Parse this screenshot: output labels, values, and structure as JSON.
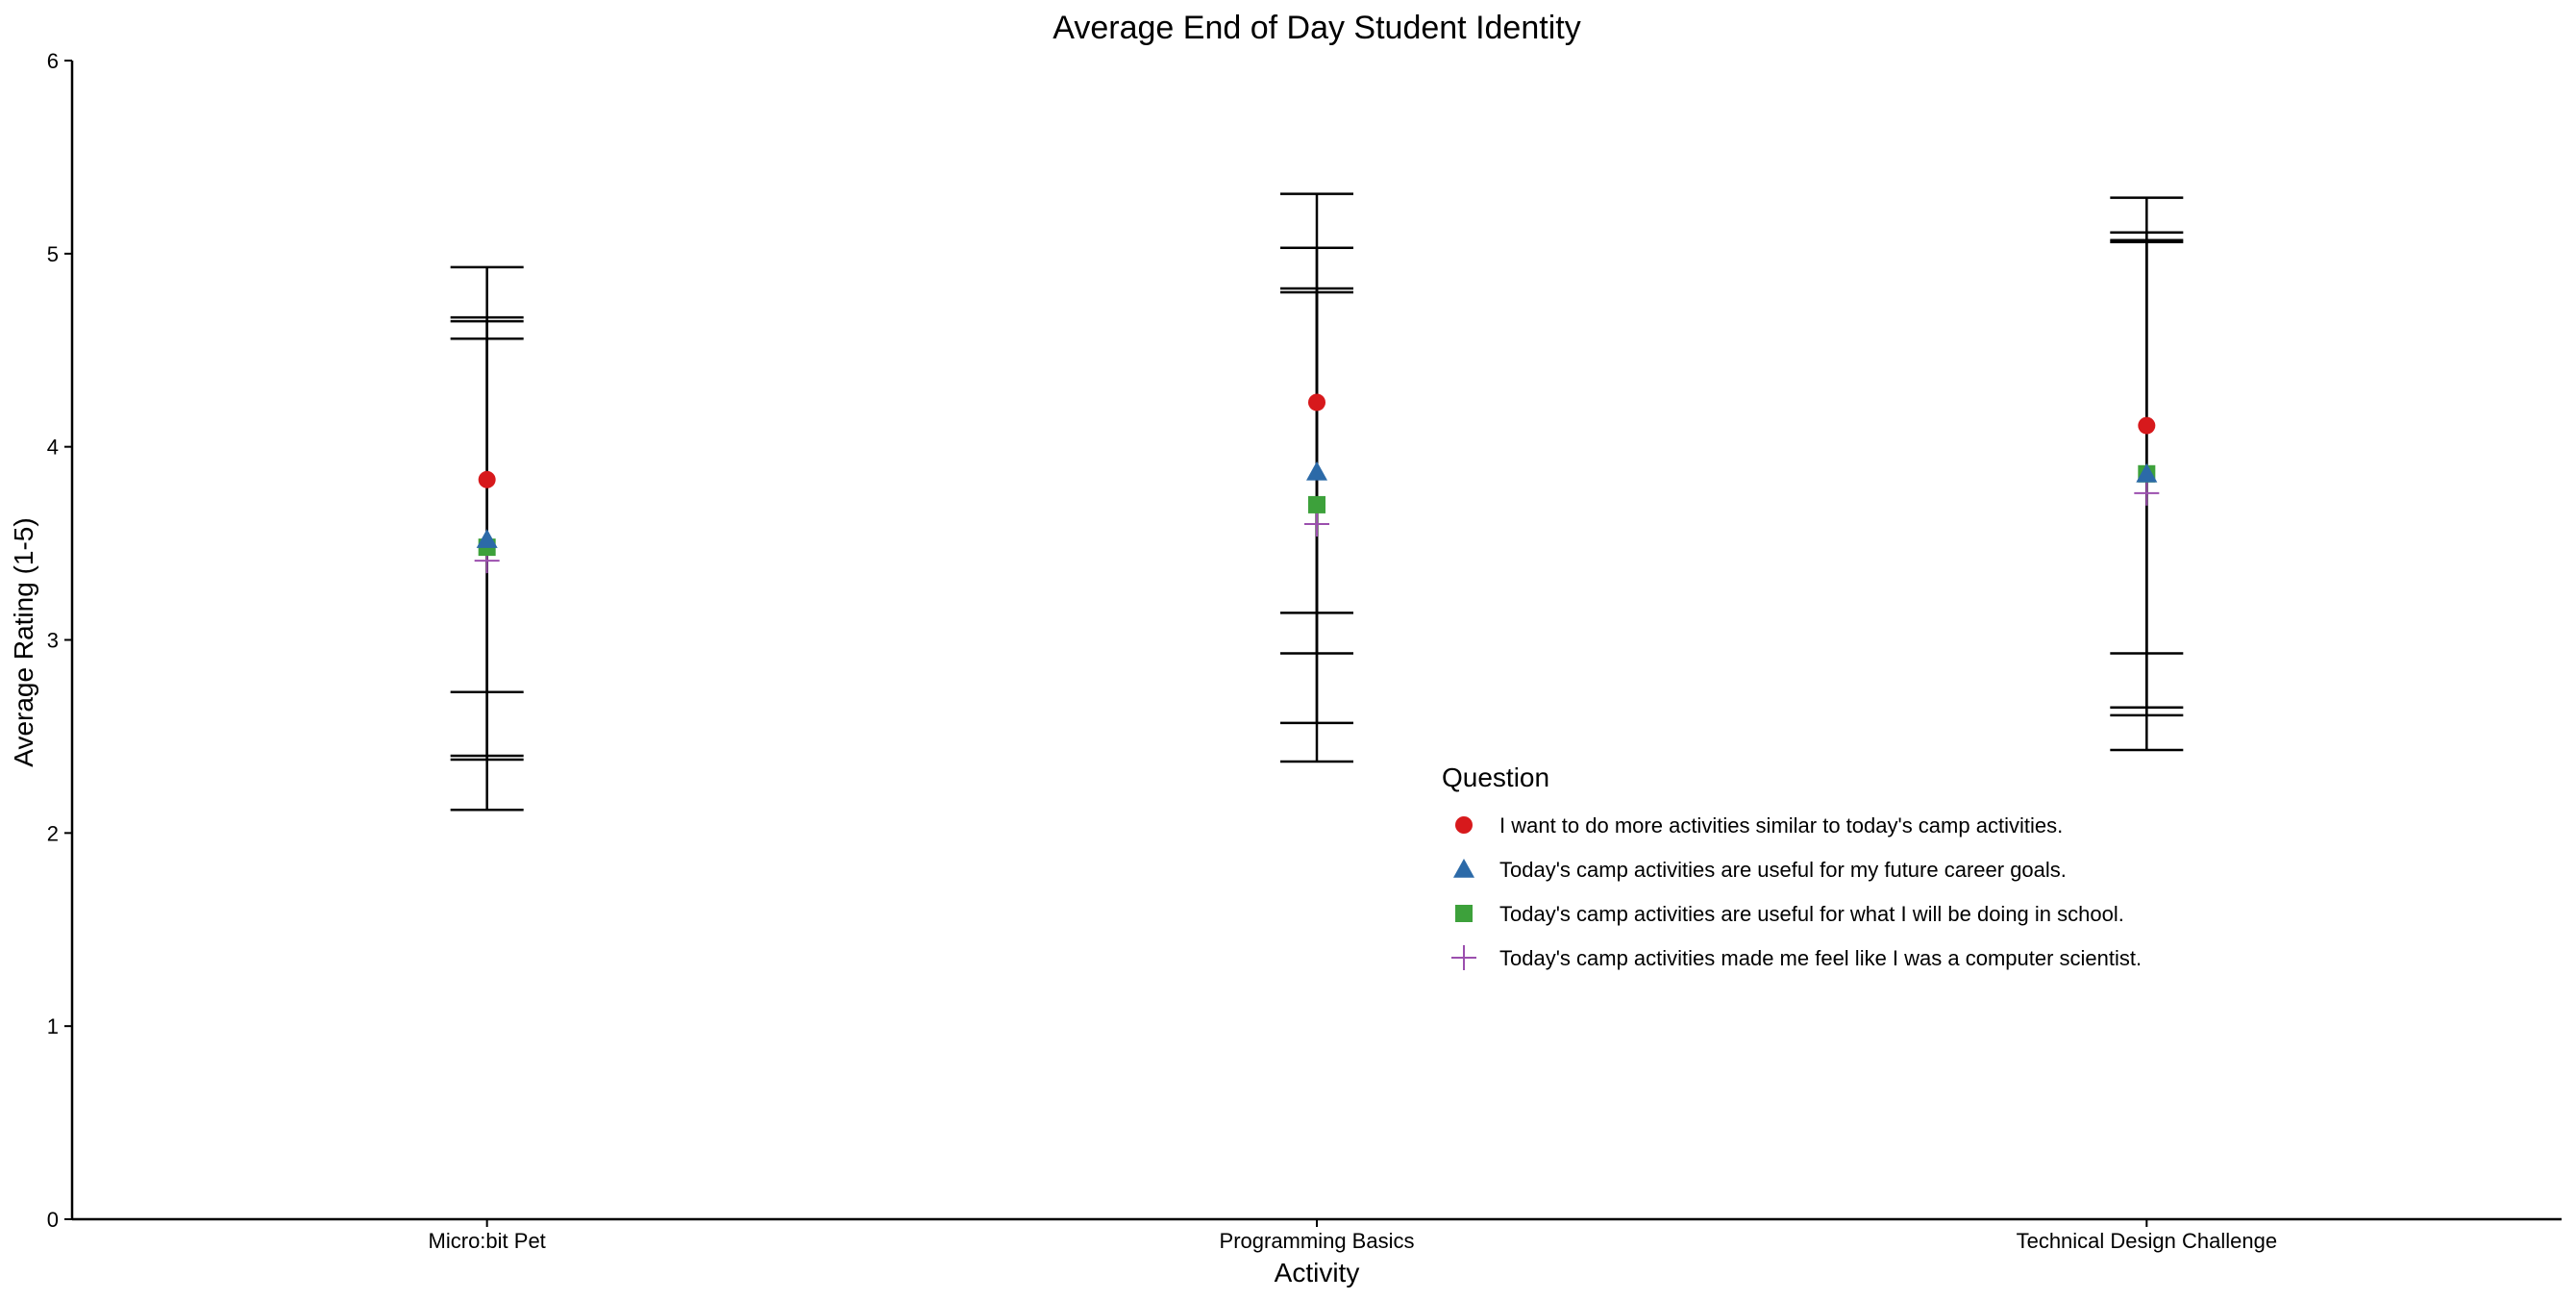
{
  "chart_data": {
    "type": "scatter",
    "title": "Average End of Day Student Identity",
    "xlabel": "Activity",
    "ylabel": "Average Rating (1-5)",
    "ylim": [
      0,
      6
    ],
    "yticks": [
      "0",
      "1",
      "2",
      "3",
      "4",
      "5",
      "6"
    ],
    "categories": [
      "Micro:bit Pet",
      "Programming Basics",
      "Technical Design Challenge"
    ],
    "grid": false,
    "legend_title": "Question",
    "legend_position": "right-center",
    "series": [
      {
        "name": "I want to do more activities similar to today's camp activities.",
        "shape": "circle",
        "color": "#d7191c",
        "values": [
          3.83,
          4.23,
          4.11
        ],
        "error_low": [
          2.73,
          3.14,
          2.93
        ],
        "error_high": [
          4.93,
          5.31,
          5.29
        ]
      },
      {
        "name": "Today's camp activities are useful for my future career goals.",
        "shape": "triangle",
        "color": "#2c6aa8",
        "values": [
          3.52,
          3.87,
          3.86
        ],
        "error_low": [
          2.4,
          2.93,
          2.65
        ],
        "error_high": [
          4.65,
          4.82,
          5.06
        ]
      },
      {
        "name": "Today's camp activities are useful for what I will be doing in school.",
        "shape": "square",
        "color": "#3da13b",
        "values": [
          3.48,
          3.7,
          3.86
        ],
        "error_low": [
          2.38,
          2.57,
          2.61
        ],
        "error_high": [
          4.56,
          4.8,
          5.11
        ]
      },
      {
        "name": "Today's camp activities made me feel like I was a computer scientist.",
        "shape": "cross",
        "color": "#9b4fae",
        "values": [
          3.41,
          3.6,
          3.76
        ],
        "error_low": [
          2.12,
          2.37,
          2.43
        ],
        "error_high": [
          4.67,
          5.03,
          5.07
        ]
      }
    ]
  }
}
